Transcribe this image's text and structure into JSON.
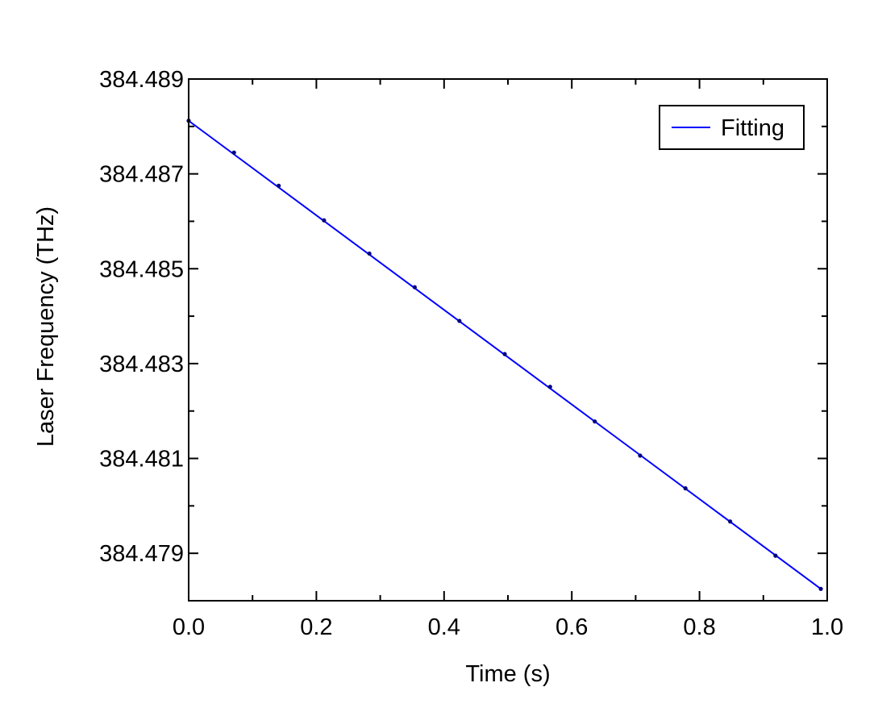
{
  "chart_data": {
    "type": "line",
    "title": "",
    "xlabel": "Time (s)",
    "ylabel": "Laser Frequency (THz)",
    "xlim": [
      0.0,
      1.0
    ],
    "ylim": [
      384.478,
      384.489
    ],
    "x_ticks": [
      0.0,
      0.2,
      0.4,
      0.6,
      0.8,
      1.0
    ],
    "x_tick_labels": [
      "0.0",
      "0.2",
      "0.4",
      "0.6",
      "0.8",
      "1.0"
    ],
    "y_ticks": [
      384.479,
      384.481,
      384.483,
      384.485,
      384.487,
      384.489
    ],
    "y_tick_labels": [
      "384.479",
      "384.481",
      "384.483",
      "384.485",
      "384.487",
      "384.489"
    ],
    "grid": false,
    "legend_position": "top-right",
    "series": [
      {
        "name": "Fitting",
        "kind": "line",
        "color": "#0000ff",
        "x": [
          0.0,
          0.99
        ],
        "y": [
          384.48812,
          384.47825
        ]
      },
      {
        "kind": "scatter",
        "color": "#000080",
        "x": [
          0.0,
          0.071,
          0.141,
          0.212,
          0.283,
          0.354,
          0.424,
          0.495,
          0.566,
          0.636,
          0.707,
          0.778,
          0.848,
          0.919,
          0.99
        ],
        "y": [
          384.48812,
          384.48745,
          384.48675,
          384.48602,
          384.48532,
          384.48461,
          384.4839,
          384.4832,
          384.48251,
          384.48178,
          384.48106,
          384.48037,
          384.47967,
          384.47895,
          384.47825
        ]
      }
    ]
  }
}
